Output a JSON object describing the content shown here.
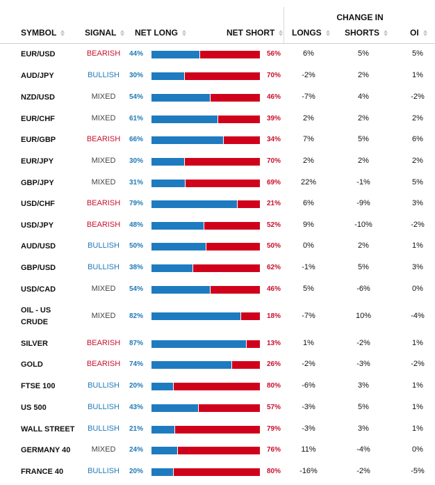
{
  "headers": {
    "change_in": "CHANGE IN",
    "symbol": "SYMBOL",
    "signal": "SIGNAL",
    "net_long": "NET LONG",
    "net_short": "NET SHORT",
    "longs": "LONGS",
    "shorts": "SHORTS",
    "oi": "OI"
  },
  "colors": {
    "long_blue": "#1f7bbf",
    "short_red": "#d0021b",
    "bullish": "#1e7ab8",
    "bearish": "#c8102e",
    "mixed": "#444444"
  },
  "rows": [
    {
      "symbol": "EUR/USD",
      "signal": "BEARISH",
      "net_long": "44%",
      "net_short": "56%",
      "longs": "6%",
      "shorts": "5%",
      "oi": "5%"
    },
    {
      "symbol": "AUD/JPY",
      "signal": "BULLISH",
      "net_long": "30%",
      "net_short": "70%",
      "longs": "-2%",
      "shorts": "2%",
      "oi": "1%"
    },
    {
      "symbol": "NZD/USD",
      "signal": "MIXED",
      "net_long": "54%",
      "net_short": "46%",
      "longs": "-7%",
      "shorts": "4%",
      "oi": "-2%"
    },
    {
      "symbol": "EUR/CHF",
      "signal": "MIXED",
      "net_long": "61%",
      "net_short": "39%",
      "longs": "2%",
      "shorts": "2%",
      "oi": "2%"
    },
    {
      "symbol": "EUR/GBP",
      "signal": "BEARISH",
      "net_long": "66%",
      "net_short": "34%",
      "longs": "7%",
      "shorts": "5%",
      "oi": "6%"
    },
    {
      "symbol": "EUR/JPY",
      "signal": "MIXED",
      "net_long": "30%",
      "net_short": "70%",
      "longs": "2%",
      "shorts": "2%",
      "oi": "2%"
    },
    {
      "symbol": "GBP/JPY",
      "signal": "MIXED",
      "net_long": "31%",
      "net_short": "69%",
      "longs": "22%",
      "shorts": "-1%",
      "oi": "5%"
    },
    {
      "symbol": "USD/CHF",
      "signal": "BEARISH",
      "net_long": "79%",
      "net_short": "21%",
      "longs": "6%",
      "shorts": "-9%",
      "oi": "3%"
    },
    {
      "symbol": "USD/JPY",
      "signal": "BEARISH",
      "net_long": "48%",
      "net_short": "52%",
      "longs": "9%",
      "shorts": "-10%",
      "oi": "-2%"
    },
    {
      "symbol": "AUD/USD",
      "signal": "BULLISH",
      "net_long": "50%",
      "net_short": "50%",
      "longs": "0%",
      "shorts": "2%",
      "oi": "1%"
    },
    {
      "symbol": "GBP/USD",
      "signal": "BULLISH",
      "net_long": "38%",
      "net_short": "62%",
      "longs": "-1%",
      "shorts": "5%",
      "oi": "3%"
    },
    {
      "symbol": "USD/CAD",
      "signal": "MIXED",
      "net_long": "54%",
      "net_short": "46%",
      "longs": "5%",
      "shorts": "-6%",
      "oi": "0%"
    },
    {
      "symbol": "OIL - US CRUDE",
      "signal": "MIXED",
      "net_long": "82%",
      "net_short": "18%",
      "longs": "-7%",
      "shorts": "10%",
      "oi": "-4%"
    },
    {
      "symbol": "SILVER",
      "signal": "BEARISH",
      "net_long": "87%",
      "net_short": "13%",
      "longs": "1%",
      "shorts": "-2%",
      "oi": "1%"
    },
    {
      "symbol": "GOLD",
      "signal": "BEARISH",
      "net_long": "74%",
      "net_short": "26%",
      "longs": "-2%",
      "shorts": "-3%",
      "oi": "-2%"
    },
    {
      "symbol": "FTSE 100",
      "signal": "BULLISH",
      "net_long": "20%",
      "net_short": "80%",
      "longs": "-6%",
      "shorts": "3%",
      "oi": "1%"
    },
    {
      "symbol": "US 500",
      "signal": "BULLISH",
      "net_long": "43%",
      "net_short": "57%",
      "longs": "-3%",
      "shorts": "5%",
      "oi": "1%"
    },
    {
      "symbol": "WALL STREET",
      "signal": "BULLISH",
      "net_long": "21%",
      "net_short": "79%",
      "longs": "-3%",
      "shorts": "3%",
      "oi": "1%"
    },
    {
      "symbol": "GERMANY 40",
      "signal": "MIXED",
      "net_long": "24%",
      "net_short": "76%",
      "longs": "11%",
      "shorts": "-4%",
      "oi": "0%"
    },
    {
      "symbol": "FRANCE 40",
      "signal": "BULLISH",
      "net_long": "20%",
      "net_short": "80%",
      "longs": "-16%",
      "shorts": "-2%",
      "oi": "-5%"
    }
  ]
}
